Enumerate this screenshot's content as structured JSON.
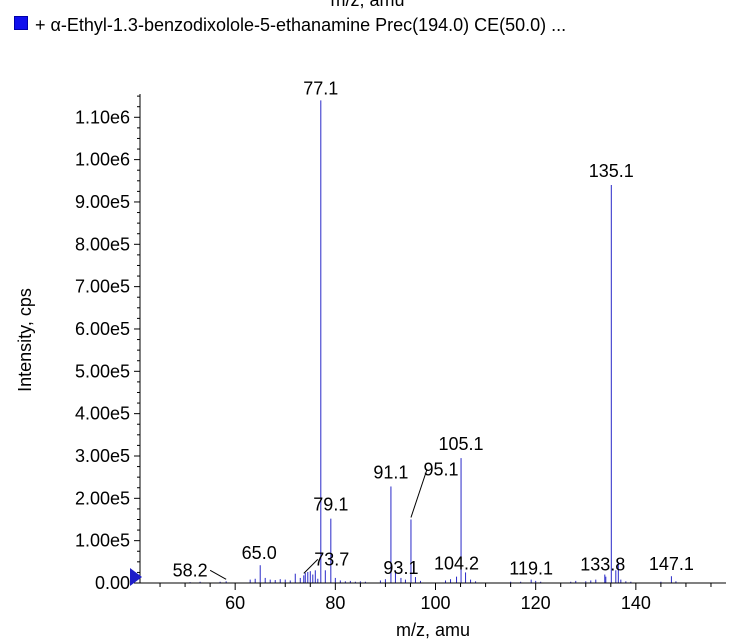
{
  "header": {
    "clipped_title": "m/z, amu"
  },
  "legend": {
    "label": "+ α-Ethyl-1.3-benzodixolole-5-ethanamine Prec(194.0) CE(50.0) ...",
    "color": "#1010ee"
  },
  "chart_data": {
    "type": "bar",
    "xlabel": "m/z, amu",
    "ylabel": "Intensity, cps",
    "xlim": [
      41,
      158
    ],
    "ylim": [
      0,
      1155000
    ],
    "x_ticks": [
      60,
      80,
      100,
      120,
      140
    ],
    "x_tick_labels": [
      "60",
      "80",
      "100",
      "120",
      "140"
    ],
    "y_ticks": [
      0,
      100000,
      200000,
      300000,
      400000,
      500000,
      600000,
      700000,
      800000,
      900000,
      1000000,
      1100000
    ],
    "y_tick_labels": [
      "0.00",
      "1.00e5",
      "2.00e5",
      "3.00e5",
      "4.00e5",
      "5.00e5",
      "6.00e5",
      "7.00e5",
      "8.00e5",
      "9.00e5",
      "1.00e6",
      "1.10e6"
    ],
    "bar_color": "#2828c8",
    "series": [
      {
        "x": [
          51.0,
          53.0,
          57.0,
          58.2,
          63.0,
          64.0,
          65.0,
          66.0,
          67.0,
          68.0,
          69.0,
          70.0,
          71.0,
          72.0,
          73.0,
          73.7,
          74.0,
          74.5,
          75.0,
          75.5,
          76.0,
          76.5,
          77.1,
          78.0,
          79.1,
          80.0,
          81.0,
          82.0,
          83.0,
          84.0,
          85.0,
          86.0,
          89.0,
          90.0,
          91.1,
          92.0,
          93.1,
          94.0,
          95.1,
          96.0,
          97.0,
          102.0,
          103.0,
          104.2,
          105.1,
          106.0,
          107.0,
          108.0,
          115.0,
          117.0,
          119.1,
          120.0,
          121.0,
          127.0,
          128.0,
          130.0,
          131.0,
          132.0,
          133.8,
          134.0,
          135.1,
          136.0,
          136.5,
          137.0,
          138.0,
          139.0,
          145.0,
          147.1,
          148.0
        ],
        "y": [
          2000,
          3000,
          3000,
          4000,
          8000,
          10000,
          42000,
          12000,
          8000,
          7000,
          9000,
          8000,
          6000,
          22000,
          12000,
          18000,
          24000,
          26000,
          28000,
          20000,
          30000,
          10000,
          1140000,
          30000,
          152000,
          12000,
          6000,
          4000,
          5000,
          3000,
          4000,
          3000,
          6000,
          9000,
          228000,
          30000,
          12000,
          8000,
          150000,
          14000,
          5000,
          6000,
          9000,
          15000,
          295000,
          25000,
          8000,
          4000,
          3000,
          3000,
          8000,
          5000,
          3000,
          3000,
          5000,
          4000,
          6000,
          8000,
          20000,
          15000,
          940000,
          30000,
          50000,
          8000,
          4000,
          3000,
          3000,
          16000,
          4000
        ]
      }
    ],
    "annotations": [
      {
        "label": "77.1",
        "x": 77.1,
        "y": 1140000
      },
      {
        "label": "135.1",
        "x": 135.1,
        "y": 940000
      },
      {
        "label": "105.1",
        "x": 105.1,
        "y": 295000
      },
      {
        "label": "91.1",
        "x": 91.1,
        "y": 228000
      },
      {
        "label": "79.1",
        "x": 79.1,
        "y": 152000
      },
      {
        "label": "95.1",
        "x": 95.1,
        "y": 150000
      },
      {
        "label": "65.0",
        "x": 65.0,
        "y": 42000
      },
      {
        "label": "73.7",
        "x": 73.7,
        "y": 18000
      },
      {
        "label": "58.2",
        "x": 58.2,
        "y": 4000
      },
      {
        "label": "93.1",
        "x": 93.1,
        "y": 12000
      },
      {
        "label": "104.2",
        "x": 104.2,
        "y": 15000
      },
      {
        "label": "119.1",
        "x": 119.1,
        "y": 8000
      },
      {
        "label": "133.8",
        "x": 133.8,
        "y": 20000
      },
      {
        "label": "147.1",
        "x": 147.1,
        "y": 16000
      }
    ]
  }
}
